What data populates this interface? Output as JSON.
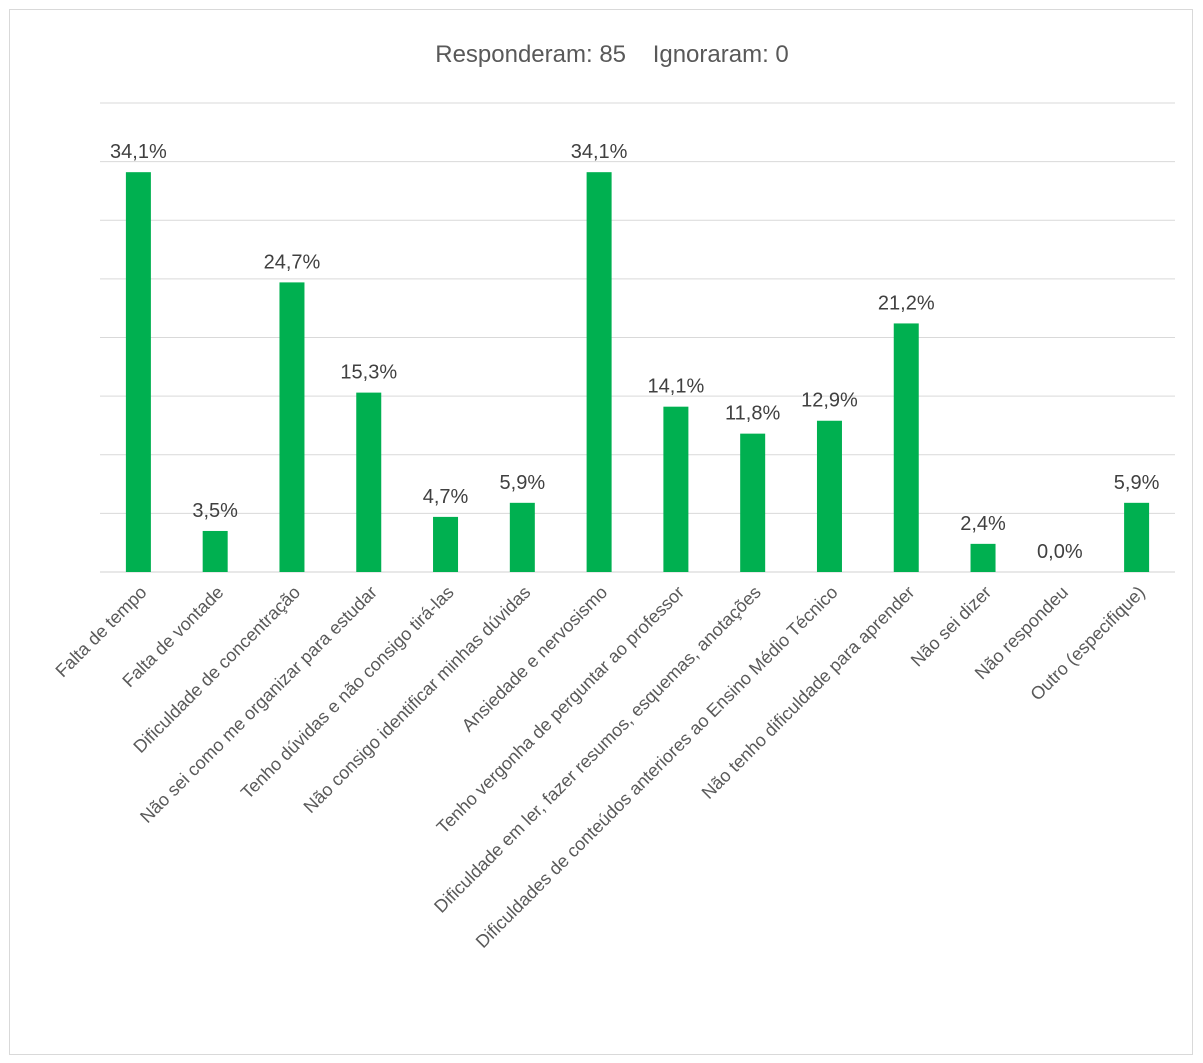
{
  "chart_data": {
    "type": "bar",
    "title": "Responderam: 85    Ignoraram: 0",
    "xlabel": "",
    "ylabel": "",
    "ylim": [
      0,
      40
    ],
    "grid": true,
    "bar_color": "#00b050",
    "categories": [
      "Falta de tempo",
      "Falta de vontade",
      "Dificuldade de concentração",
      "Não sei como me organizar para estudar",
      "Tenho dúvidas e não consigo tirá-las",
      "Não consigo identificar minhas dúvidas",
      "Ansiedade e nervosismo",
      "Tenho vergonha de perguntar ao professor",
      "Dificuldade em ler, fazer resumos, esquemas, anotações",
      "Dificuldades de conteúdos anteriores ao Ensino Médio Técnico",
      "Não tenho dificuldade para aprender",
      "Não sei dizer",
      "Não respondeu",
      "Outro (especifique)"
    ],
    "values": [
      34.1,
      3.5,
      24.7,
      15.3,
      4.7,
      5.9,
      34.1,
      14.1,
      11.8,
      12.9,
      21.2,
      2.4,
      0.0,
      5.9
    ],
    "data_labels": [
      "34,1%",
      "3,5%",
      "24,7%",
      "15,3%",
      "4,7%",
      "5,9%",
      "34,1%",
      "14,1%",
      "11,8%",
      "12,9%",
      "21,2%",
      "2,4%",
      "0,0%",
      "5,9%"
    ]
  }
}
